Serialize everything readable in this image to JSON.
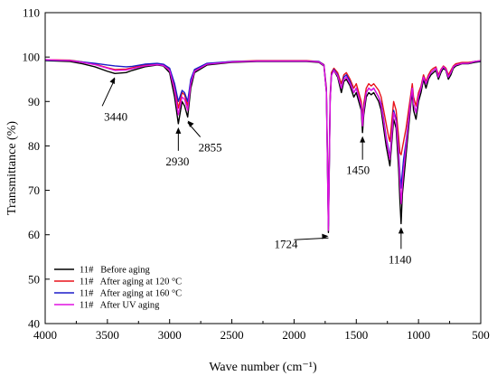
{
  "chart_data": {
    "type": "line",
    "xlabel": "Wave number (cm⁻¹)",
    "ylabel": "Transmittance (%)",
    "xlim": [
      4000,
      500
    ],
    "ylim": [
      40,
      110
    ],
    "x_ticks": [
      4000,
      3500,
      3000,
      2500,
      2000,
      1500,
      1000,
      500
    ],
    "y_ticks": [
      40,
      50,
      60,
      70,
      80,
      90,
      100,
      110
    ],
    "x_reversed": true,
    "grid": false,
    "legend_position": "bottom-left",
    "series": [
      {
        "name": "11#   Before aging",
        "color": "#000000",
        "x": [
          4000,
          3800,
          3700,
          3600,
          3500,
          3440,
          3350,
          3300,
          3200,
          3100,
          3050,
          3000,
          2960,
          2930,
          2900,
          2880,
          2855,
          2830,
          2800,
          2700,
          2500,
          2300,
          2100,
          1900,
          1800,
          1760,
          1740,
          1724,
          1710,
          1700,
          1680,
          1650,
          1620,
          1600,
          1580,
          1550,
          1520,
          1500,
          1480,
          1460,
          1450,
          1440,
          1420,
          1400,
          1380,
          1360,
          1320,
          1300,
          1280,
          1260,
          1240,
          1230,
          1220,
          1200,
          1180,
          1160,
          1150,
          1140,
          1130,
          1120,
          1100,
          1080,
          1060,
          1050,
          1040,
          1020,
          1000,
          980,
          960,
          940,
          920,
          900,
          880,
          860,
          840,
          820,
          800,
          780,
          760,
          740,
          720,
          700,
          650,
          600,
          550,
          500
        ],
        "y": [
          99.2,
          99.0,
          98.5,
          97.8,
          96.8,
          96.3,
          96.5,
          97.0,
          97.8,
          98.2,
          98.0,
          96.5,
          91.0,
          85.0,
          90.0,
          89.0,
          86.5,
          93.0,
          96.5,
          98.2,
          98.8,
          99.0,
          99.0,
          99.0,
          98.8,
          98.0,
          92.0,
          60.5,
          90.0,
          96.0,
          97.0,
          95.5,
          92.0,
          94.5,
          95.0,
          93.5,
          91.0,
          92.0,
          90.0,
          88.0,
          83.0,
          87.0,
          91.0,
          92.0,
          91.5,
          92.0,
          90.0,
          88.0,
          84.0,
          80.0,
          77.0,
          75.5,
          79.0,
          86.0,
          84.0,
          75.0,
          68.0,
          62.5,
          69.0,
          72.0,
          78.0,
          84.0,
          90.0,
          92.0,
          88.0,
          86.0,
          90.0,
          92.0,
          95.0,
          93.0,
          95.0,
          96.0,
          96.5,
          97.0,
          95.0,
          96.5,
          97.5,
          97.0,
          95.0,
          96.0,
          97.5,
          98.0,
          98.5,
          98.5,
          98.8,
          99.0
        ]
      },
      {
        "name": "11#   After aging at 120 °C",
        "color": "#e8121a",
        "x": [
          4000,
          3800,
          3700,
          3600,
          3500,
          3440,
          3350,
          3300,
          3200,
          3100,
          3050,
          3000,
          2960,
          2930,
          2900,
          2880,
          2855,
          2830,
          2800,
          2700,
          2500,
          2300,
          2100,
          1900,
          1800,
          1760,
          1740,
          1724,
          1710,
          1700,
          1680,
          1650,
          1620,
          1600,
          1580,
          1550,
          1520,
          1500,
          1480,
          1460,
          1450,
          1440,
          1420,
          1400,
          1380,
          1360,
          1320,
          1300,
          1280,
          1260,
          1240,
          1230,
          1220,
          1200,
          1180,
          1160,
          1150,
          1140,
          1130,
          1120,
          1100,
          1080,
          1060,
          1050,
          1040,
          1020,
          1000,
          980,
          960,
          940,
          920,
          900,
          880,
          860,
          840,
          820,
          800,
          780,
          760,
          740,
          720,
          700,
          650,
          600,
          550,
          500
        ],
        "y": [
          99.4,
          99.3,
          98.9,
          98.4,
          97.6,
          97.2,
          97.3,
          97.6,
          98.2,
          98.5,
          98.3,
          97.2,
          93.5,
          88.5,
          92.0,
          91.5,
          89.0,
          94.5,
          97.0,
          98.5,
          99.0,
          99.2,
          99.2,
          99.2,
          99.0,
          98.3,
          93.0,
          63.5,
          91.5,
          96.5,
          97.5,
          96.5,
          94.0,
          96.0,
          96.5,
          95.0,
          93.0,
          94.0,
          92.0,
          90.0,
          86.5,
          89.5,
          93.0,
          94.0,
          93.5,
          94.0,
          92.5,
          91.0,
          88.0,
          85.0,
          82.0,
          81.0,
          84.0,
          90.0,
          88.0,
          82.0,
          78.5,
          78.0,
          79.5,
          81.0,
          84.0,
          88.0,
          92.0,
          94.0,
          91.0,
          89.0,
          92.0,
          93.5,
          96.0,
          94.5,
          96.0,
          97.0,
          97.5,
          97.8,
          96.0,
          97.2,
          98.0,
          97.5,
          96.0,
          97.0,
          98.0,
          98.5,
          98.8,
          98.8,
          99.0,
          99.2
        ]
      },
      {
        "name": "11#   After aging at 160 °C",
        "color": "#1c1cc8",
        "x": [
          4000,
          3800,
          3700,
          3600,
          3500,
          3440,
          3350,
          3300,
          3200,
          3100,
          3050,
          3000,
          2960,
          2930,
          2900,
          2880,
          2855,
          2830,
          2800,
          2700,
          2500,
          2300,
          2100,
          1900,
          1800,
          1760,
          1740,
          1724,
          1710,
          1700,
          1680,
          1650,
          1620,
          1600,
          1580,
          1550,
          1520,
          1500,
          1480,
          1460,
          1450,
          1440,
          1420,
          1400,
          1380,
          1360,
          1320,
          1300,
          1280,
          1260,
          1240,
          1230,
          1220,
          1200,
          1180,
          1160,
          1150,
          1140,
          1130,
          1120,
          1100,
          1080,
          1060,
          1050,
          1040,
          1020,
          1000,
          980,
          960,
          940,
          920,
          900,
          880,
          860,
          840,
          820,
          800,
          780,
          760,
          740,
          720,
          700,
          650,
          600,
          550,
          500
        ],
        "y": [
          99.3,
          99.2,
          98.9,
          98.6,
          98.2,
          98.0,
          97.8,
          97.9,
          98.4,
          98.6,
          98.4,
          97.5,
          94.0,
          90.0,
          92.5,
          92.0,
          90.0,
          95.0,
          97.2,
          98.6,
          99.0,
          99.1,
          99.1,
          99.1,
          99.0,
          98.2,
          92.5,
          62.0,
          90.5,
          96.0,
          97.2,
          96.0,
          93.0,
          95.5,
          96.0,
          94.5,
          92.0,
          93.0,
          91.0,
          89.0,
          85.0,
          88.5,
          92.0,
          93.0,
          92.5,
          93.0,
          91.0,
          89.5,
          86.0,
          82.0,
          79.0,
          77.5,
          81.0,
          88.0,
          86.0,
          79.0,
          74.0,
          70.5,
          74.0,
          77.0,
          81.0,
          86.0,
          91.0,
          93.0,
          89.5,
          87.5,
          91.0,
          93.0,
          95.5,
          94.0,
          95.5,
          96.5,
          97.0,
          97.5,
          95.5,
          97.0,
          97.8,
          97.2,
          95.5,
          96.5,
          97.8,
          98.2,
          98.6,
          98.6,
          99.0,
          99.1
        ]
      },
      {
        "name": "11#   After UV aging",
        "color": "#e010e0",
        "x": [
          4000,
          3800,
          3700,
          3600,
          3500,
          3440,
          3350,
          3300,
          3200,
          3100,
          3050,
          3000,
          2960,
          2930,
          2900,
          2880,
          2855,
          2830,
          2800,
          2700,
          2500,
          2300,
          2100,
          1900,
          1800,
          1760,
          1740,
          1724,
          1710,
          1700,
          1680,
          1650,
          1620,
          1600,
          1580,
          1550,
          1520,
          1500,
          1480,
          1460,
          1450,
          1440,
          1420,
          1400,
          1380,
          1360,
          1320,
          1300,
          1280,
          1260,
          1240,
          1230,
          1220,
          1200,
          1180,
          1160,
          1150,
          1140,
          1130,
          1120,
          1100,
          1080,
          1060,
          1050,
          1040,
          1020,
          1000,
          980,
          960,
          940,
          920,
          900,
          880,
          860,
          840,
          820,
          800,
          780,
          760,
          740,
          720,
          700,
          650,
          600,
          550,
          500
        ],
        "y": [
          99.4,
          99.2,
          98.8,
          98.3,
          97.5,
          97.0,
          97.1,
          97.4,
          98.0,
          98.3,
          98.1,
          97.0,
          92.5,
          87.0,
          91.0,
          90.5,
          88.0,
          94.0,
          96.8,
          98.4,
          98.9,
          99.1,
          99.1,
          99.1,
          98.9,
          98.1,
          92.0,
          61.0,
          90.0,
          95.8,
          97.0,
          95.8,
          93.0,
          95.0,
          95.5,
          94.0,
          92.0,
          93.0,
          91.0,
          89.0,
          84.5,
          88.0,
          92.0,
          93.0,
          92.5,
          93.0,
          91.0,
          89.0,
          85.5,
          81.5,
          78.5,
          77.0,
          80.5,
          87.5,
          85.5,
          78.0,
          72.0,
          67.0,
          71.0,
          74.5,
          80.0,
          85.5,
          91.0,
          93.0,
          89.5,
          87.5,
          91.0,
          93.0,
          95.5,
          94.0,
          95.5,
          96.5,
          97.0,
          97.5,
          95.5,
          97.0,
          97.8,
          97.2,
          95.5,
          96.5,
          97.8,
          98.2,
          98.6,
          98.6,
          99.0,
          99.2
        ]
      }
    ],
    "annotations": [
      {
        "text": "3440",
        "x": 3440,
        "y": 96.3
      },
      {
        "text": "2930",
        "x": 2930,
        "y": 85.0
      },
      {
        "text": "2855",
        "x": 2855,
        "y": 86.5
      },
      {
        "text": "1724",
        "x": 1724,
        "y": 60.5
      },
      {
        "text": "1450",
        "x": 1450,
        "y": 83.0
      },
      {
        "text": "1140",
        "x": 1140,
        "y": 62.5
      }
    ]
  }
}
